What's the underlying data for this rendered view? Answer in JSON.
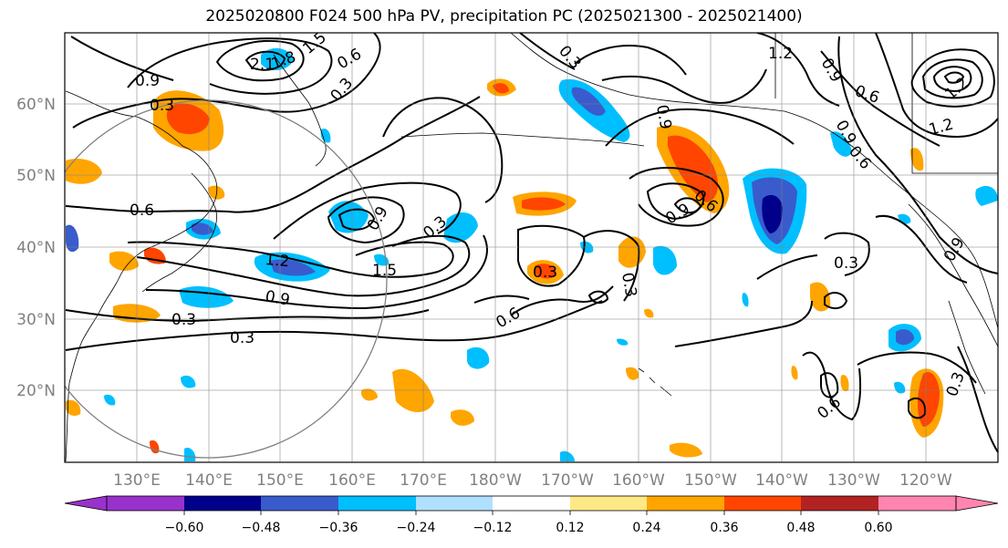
{
  "title": "2025020800 F024 500 hPa PV, precipitation PC (2025021300 - 2025021400)",
  "map": {
    "lat_ticks": [
      "60°N",
      "50°N",
      "40°N",
      "30°N",
      "20°N"
    ],
    "lon_ticks": [
      "130°E",
      "140°E",
      "150°E",
      "160°E",
      "170°E",
      "180°W",
      "170°W",
      "160°W",
      "150°W",
      "140°W",
      "130°W",
      "120°W"
    ],
    "contour_labels": [
      "0.9",
      "0.3",
      "2.1",
      "1.8",
      "1.5",
      "0.6",
      "0.3",
      "1.2",
      "0.9",
      "0.6",
      "1.2",
      "0.9",
      "0.6",
      "1.2",
      "0.9",
      "0.6",
      "0.3",
      "0.9",
      "0.3",
      "1.2",
      "1.5",
      "0.9",
      "0.3",
      "0.3",
      "0.6",
      "0.3",
      "0.6",
      "0.9",
      "0.3",
      "0.9",
      "0.6",
      "0.3"
    ],
    "colors": {
      "contour": "#000000",
      "grid": "#808080",
      "coast": "#000000"
    }
  },
  "colorbar": {
    "tick_labels": [
      "−0.60",
      "−0.48",
      "−0.36",
      "−0.24",
      "−0.12",
      "0.12",
      "0.24",
      "0.36",
      "0.48",
      "0.60"
    ],
    "colors": [
      "#9932cc",
      "#00008b",
      "#3a5bcc",
      "#00bfff",
      "#b0e0ff",
      "#ffffff",
      "#ffe987",
      "#ffa500",
      "#ff4500",
      "#b22222",
      "#ff85b0"
    ]
  }
}
